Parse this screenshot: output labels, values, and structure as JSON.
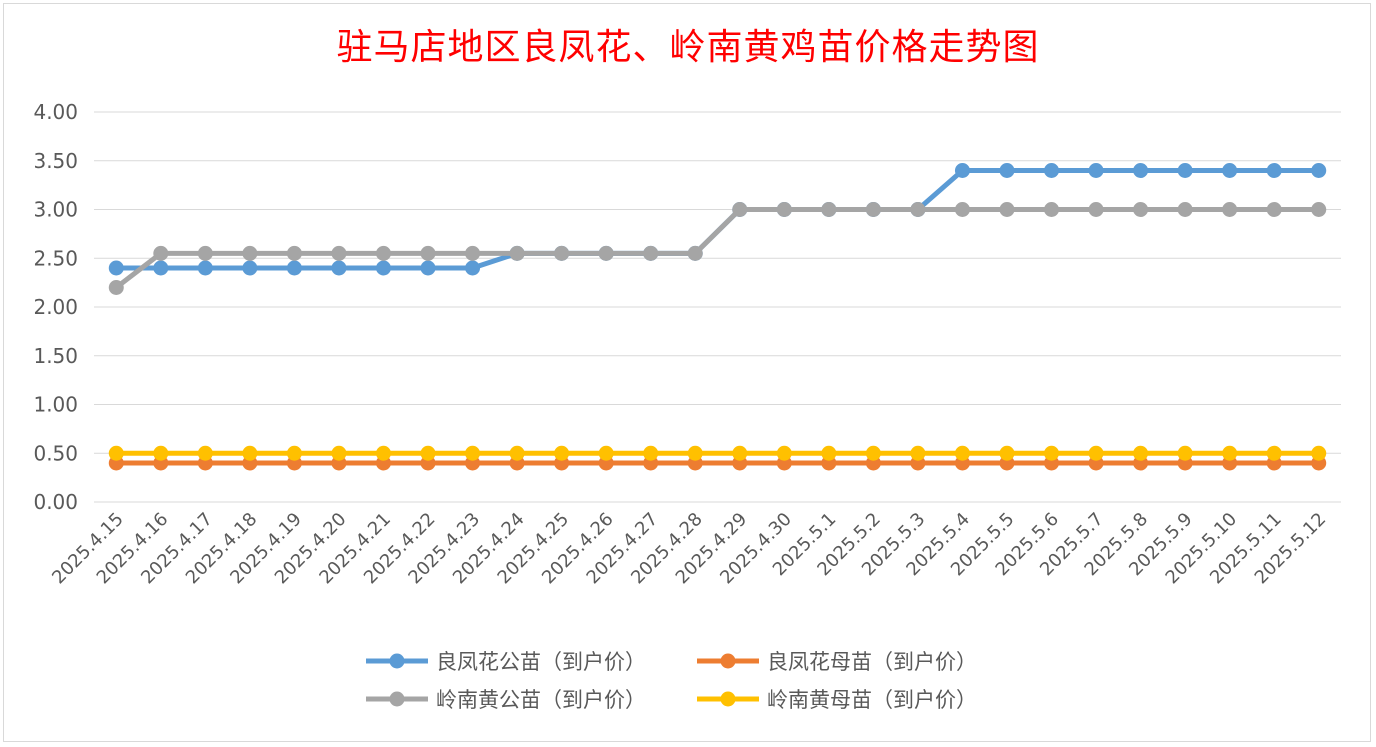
{
  "chart_data": {
    "type": "line",
    "title": "驻马店地区良凤花、岭南黄鸡苗价格走势图",
    "xlabel": "",
    "ylabel": "",
    "ylim": [
      0,
      4
    ],
    "yticks": [
      "0.00",
      "0.50",
      "1.00",
      "1.50",
      "2.00",
      "2.50",
      "3.00",
      "3.50",
      "4.00"
    ],
    "grid": true,
    "legend_position": "bottom",
    "categories": [
      "2025.4.15",
      "2025.4.16",
      "2025.4.17",
      "2025.4.18",
      "2025.4.19",
      "2025.4.20",
      "2025.4.21",
      "2025.4.22",
      "2025.4.23",
      "2025.4.24",
      "2025.4.25",
      "2025.4.26",
      "2025.4.27",
      "2025.4.28",
      "2025.4.29",
      "2025.4.30",
      "2025.5.1",
      "2025.5.2",
      "2025.5.3",
      "2025.5.4",
      "2025.5.5",
      "2025.5.6",
      "2025.5.7",
      "2025.5.8",
      "2025.5.9",
      "2025.5.10",
      "2025.5.11",
      "2025.5.12"
    ],
    "series": [
      {
        "name": "良凤花公苗（到户价）",
        "color": "#5b9bd5",
        "values": [
          2.4,
          2.4,
          2.4,
          2.4,
          2.4,
          2.4,
          2.4,
          2.4,
          2.4,
          2.55,
          2.55,
          2.55,
          2.55,
          2.55,
          3.0,
          3.0,
          3.0,
          3.0,
          3.0,
          3.4,
          3.4,
          3.4,
          3.4,
          3.4,
          3.4,
          3.4,
          3.4,
          3.4
        ]
      },
      {
        "name": "良凤花母苗（到户价）",
        "color": "#ed7d31",
        "values": [
          0.4,
          0.4,
          0.4,
          0.4,
          0.4,
          0.4,
          0.4,
          0.4,
          0.4,
          0.4,
          0.4,
          0.4,
          0.4,
          0.4,
          0.4,
          0.4,
          0.4,
          0.4,
          0.4,
          0.4,
          0.4,
          0.4,
          0.4,
          0.4,
          0.4,
          0.4,
          0.4,
          0.4
        ]
      },
      {
        "name": "岭南黄公苗（到户价）",
        "color": "#a5a5a5",
        "values": [
          2.2,
          2.55,
          2.55,
          2.55,
          2.55,
          2.55,
          2.55,
          2.55,
          2.55,
          2.55,
          2.55,
          2.55,
          2.55,
          2.55,
          3.0,
          3.0,
          3.0,
          3.0,
          3.0,
          3.0,
          3.0,
          3.0,
          3.0,
          3.0,
          3.0,
          3.0,
          3.0,
          3.0
        ]
      },
      {
        "name": "岭南黄母苗（到户价）",
        "color": "#ffc000",
        "values": [
          0.5,
          0.5,
          0.5,
          0.5,
          0.5,
          0.5,
          0.5,
          0.5,
          0.5,
          0.5,
          0.5,
          0.5,
          0.5,
          0.5,
          0.5,
          0.5,
          0.5,
          0.5,
          0.5,
          0.5,
          0.5,
          0.5,
          0.5,
          0.5,
          0.5,
          0.5,
          0.5,
          0.5
        ]
      }
    ]
  }
}
